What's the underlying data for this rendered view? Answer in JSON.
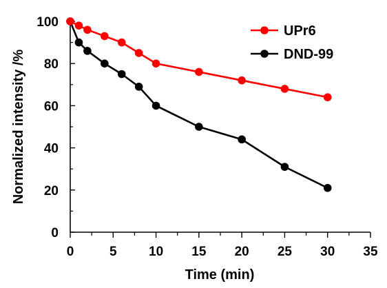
{
  "chart_data": {
    "type": "line",
    "xlabel": "Time (min)",
    "ylabel": "Normalized intensity /%",
    "xlim": [
      0,
      35
    ],
    "ylim": [
      0,
      100
    ],
    "xticks": [
      0,
      5,
      10,
      15,
      20,
      25,
      30,
      35
    ],
    "yticks": [
      0,
      20,
      40,
      60,
      80,
      100
    ],
    "grid": false,
    "legend_position": "top-right",
    "series": [
      {
        "name": "UPr6",
        "color": "#ff0000",
        "x": [
          0,
          1,
          2,
          4,
          6,
          8,
          10,
          15,
          20,
          25,
          30
        ],
        "values": [
          100,
          98,
          96,
          93,
          90,
          85,
          80,
          76,
          72,
          68,
          64
        ]
      },
      {
        "name": "DND-99",
        "color": "#000000",
        "x": [
          0,
          1,
          2,
          4,
          6,
          8,
          10,
          15,
          20,
          25,
          30
        ],
        "values": [
          100,
          90,
          86,
          80,
          75,
          69,
          60,
          50,
          44,
          31,
          21
        ]
      }
    ]
  }
}
